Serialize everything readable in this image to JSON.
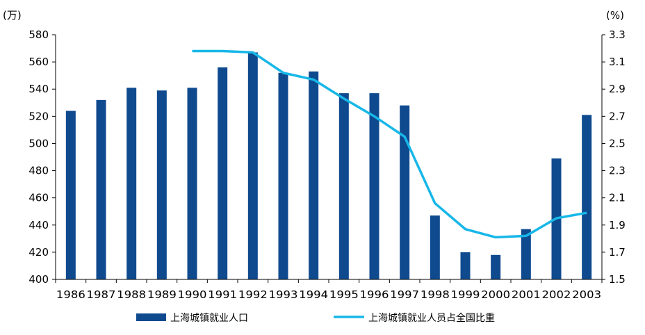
{
  "chart_data": {
    "type": "bar",
    "categories": [
      "1986",
      "1987",
      "1988",
      "1989",
      "1990",
      "1991",
      "1992",
      "1993",
      "1994",
      "1995",
      "1996",
      "1997",
      "1998",
      "1999",
      "2000",
      "2001",
      "2002",
      "2003"
    ],
    "series": [
      {
        "name": "上海城镇就业人口",
        "type": "bar",
        "axis": "left",
        "color": "#0f4a8f",
        "values": [
          524,
          532,
          541,
          539,
          541,
          556,
          567,
          552,
          553,
          537,
          537,
          528,
          447,
          420,
          418,
          437,
          489,
          521
        ]
      },
      {
        "name": "上海城镇就业人员占全国比重",
        "type": "line",
        "axis": "right",
        "color": "#17b7e8",
        "values": [
          null,
          null,
          null,
          null,
          3.18,
          3.18,
          3.17,
          3.02,
          2.97,
          2.83,
          2.7,
          2.55,
          2.06,
          1.87,
          1.81,
          1.82,
          1.95,
          1.99
        ]
      }
    ],
    "y_left": {
      "unit": "(万)",
      "range": [
        400,
        580
      ],
      "ticks": [
        "400",
        "420",
        "440",
        "460",
        "480",
        "500",
        "520",
        "540",
        "560",
        "580"
      ]
    },
    "y_right": {
      "unit": "(%)",
      "range": [
        1.5,
        3.3
      ],
      "ticks": [
        "1.5",
        "1.7",
        "1.9",
        "2.1",
        "2.3",
        "2.5",
        "2.7",
        "2.9",
        "3.1",
        "3.3"
      ]
    },
    "grid": false,
    "legend_position": "bottom"
  }
}
